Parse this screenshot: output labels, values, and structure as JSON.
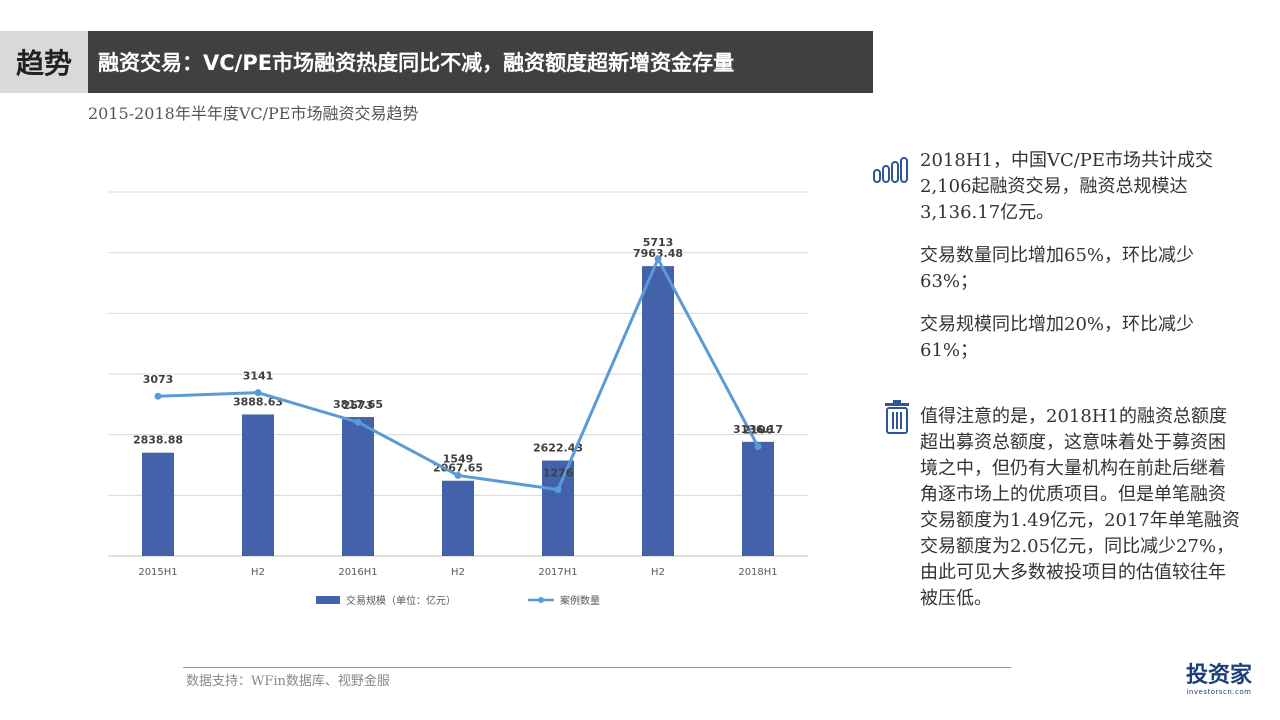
{
  "header": {
    "tag": "趋势",
    "title": "融资交易：VC/PE市场融资热度同比不减，融资额度超新增资金存量"
  },
  "chart_subtitle": "2015-2018年半年度VC/PE市场融资交易趋势",
  "chart_data": {
    "type": "bar",
    "title": "",
    "categories": [
      "2015H1",
      "H2",
      "2016H1",
      "H2",
      "2017H1",
      "H2",
      "2018H1"
    ],
    "series": [
      {
        "name": "交易规模（单位：亿元）",
        "type": "bar",
        "values": [
          2838.88,
          3888.63,
          3817.65,
          2067.65,
          2622.43,
          7963.48,
          3136.17
        ],
        "labels": [
          "2838.88",
          "3888.63",
          "3817.65",
          "2067.65",
          "2622.43",
          "7963.48",
          "3136.17"
        ],
        "color": "#4462a9"
      },
      {
        "name": "案例数量",
        "type": "line",
        "values": [
          3073,
          3141,
          2573,
          1549,
          1276,
          5713,
          2106
        ],
        "labels": [
          "3073",
          "3141",
          "2573",
          "1549",
          "1276",
          "5713",
          "2106"
        ],
        "color": "#5b9bd5"
      }
    ],
    "bar_axis_range": [
      0,
      10000
    ],
    "line_axis_range": [
      0,
      7000
    ],
    "grid": true,
    "legend_placement": "bottom"
  },
  "side": {
    "block1_icon": "bar-chart-icon",
    "block1_paragraphs": [
      "2018H1，中国VC/PE市场共计成交2,106起融资交易，融资总规模达3,136.17亿元。",
      "交易数量同比增加65%，环比减少63%；",
      "交易规模同比增加20%，环比减少61%；"
    ],
    "block2_icon": "trash-icon",
    "block2_paragraphs": [
      "值得注意的是，2018H1的融资总额度超出募资总额度，这意味着处于募资困境之中，但仍有大量机构在前赴后继着角逐市场上的优质项目。但是单笔融资交易额度为1.49亿元，2017年单笔融资交易额度为2.05亿元，同比减少27%，由此可见大多数被投项目的估值较往年被压低。"
    ],
    "accent_color": "#2e5596"
  },
  "footer": {
    "source": "数据支持：WFin数据库、视野金服"
  },
  "logo": {
    "main": "投资家",
    "sub": "investorscn.com"
  }
}
